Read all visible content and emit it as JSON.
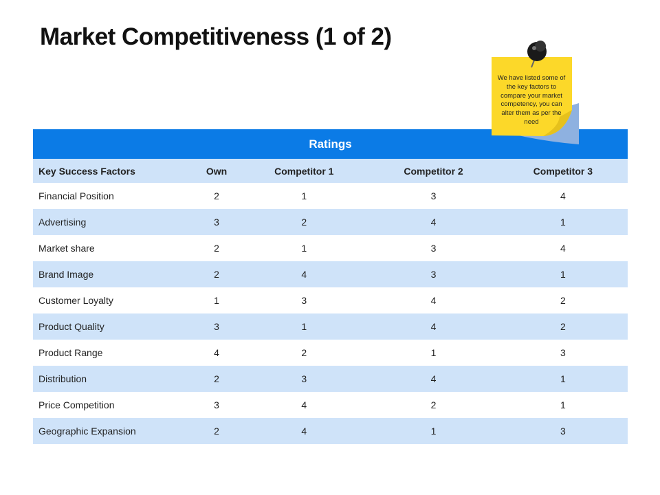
{
  "title": "Market Competitiveness (1 of 2)",
  "note": "We have listed some of the key factors to compare your market competency, you can alter them as per the need",
  "table": {
    "group_header": "Ratings",
    "columns": [
      "Key Success Factors",
      "Own",
      "Competitor 1",
      "Competitor 2",
      "Competitor 3"
    ],
    "rows": [
      [
        "Financial Position",
        2,
        1,
        3,
        4
      ],
      [
        "Advertising",
        3,
        2,
        4,
        1
      ],
      [
        "Market share",
        2,
        1,
        3,
        4
      ],
      [
        "Brand Image",
        2,
        4,
        3,
        1
      ],
      [
        "Customer Loyalty",
        1,
        3,
        4,
        2
      ],
      [
        "Product Quality",
        3,
        1,
        4,
        2
      ],
      [
        "Product Range",
        4,
        2,
        1,
        3
      ],
      [
        "Distribution",
        2,
        3,
        4,
        1
      ],
      [
        "Price Competition",
        3,
        4,
        2,
        1
      ],
      [
        "Geographic Expansion",
        2,
        4,
        1,
        3
      ]
    ]
  }
}
